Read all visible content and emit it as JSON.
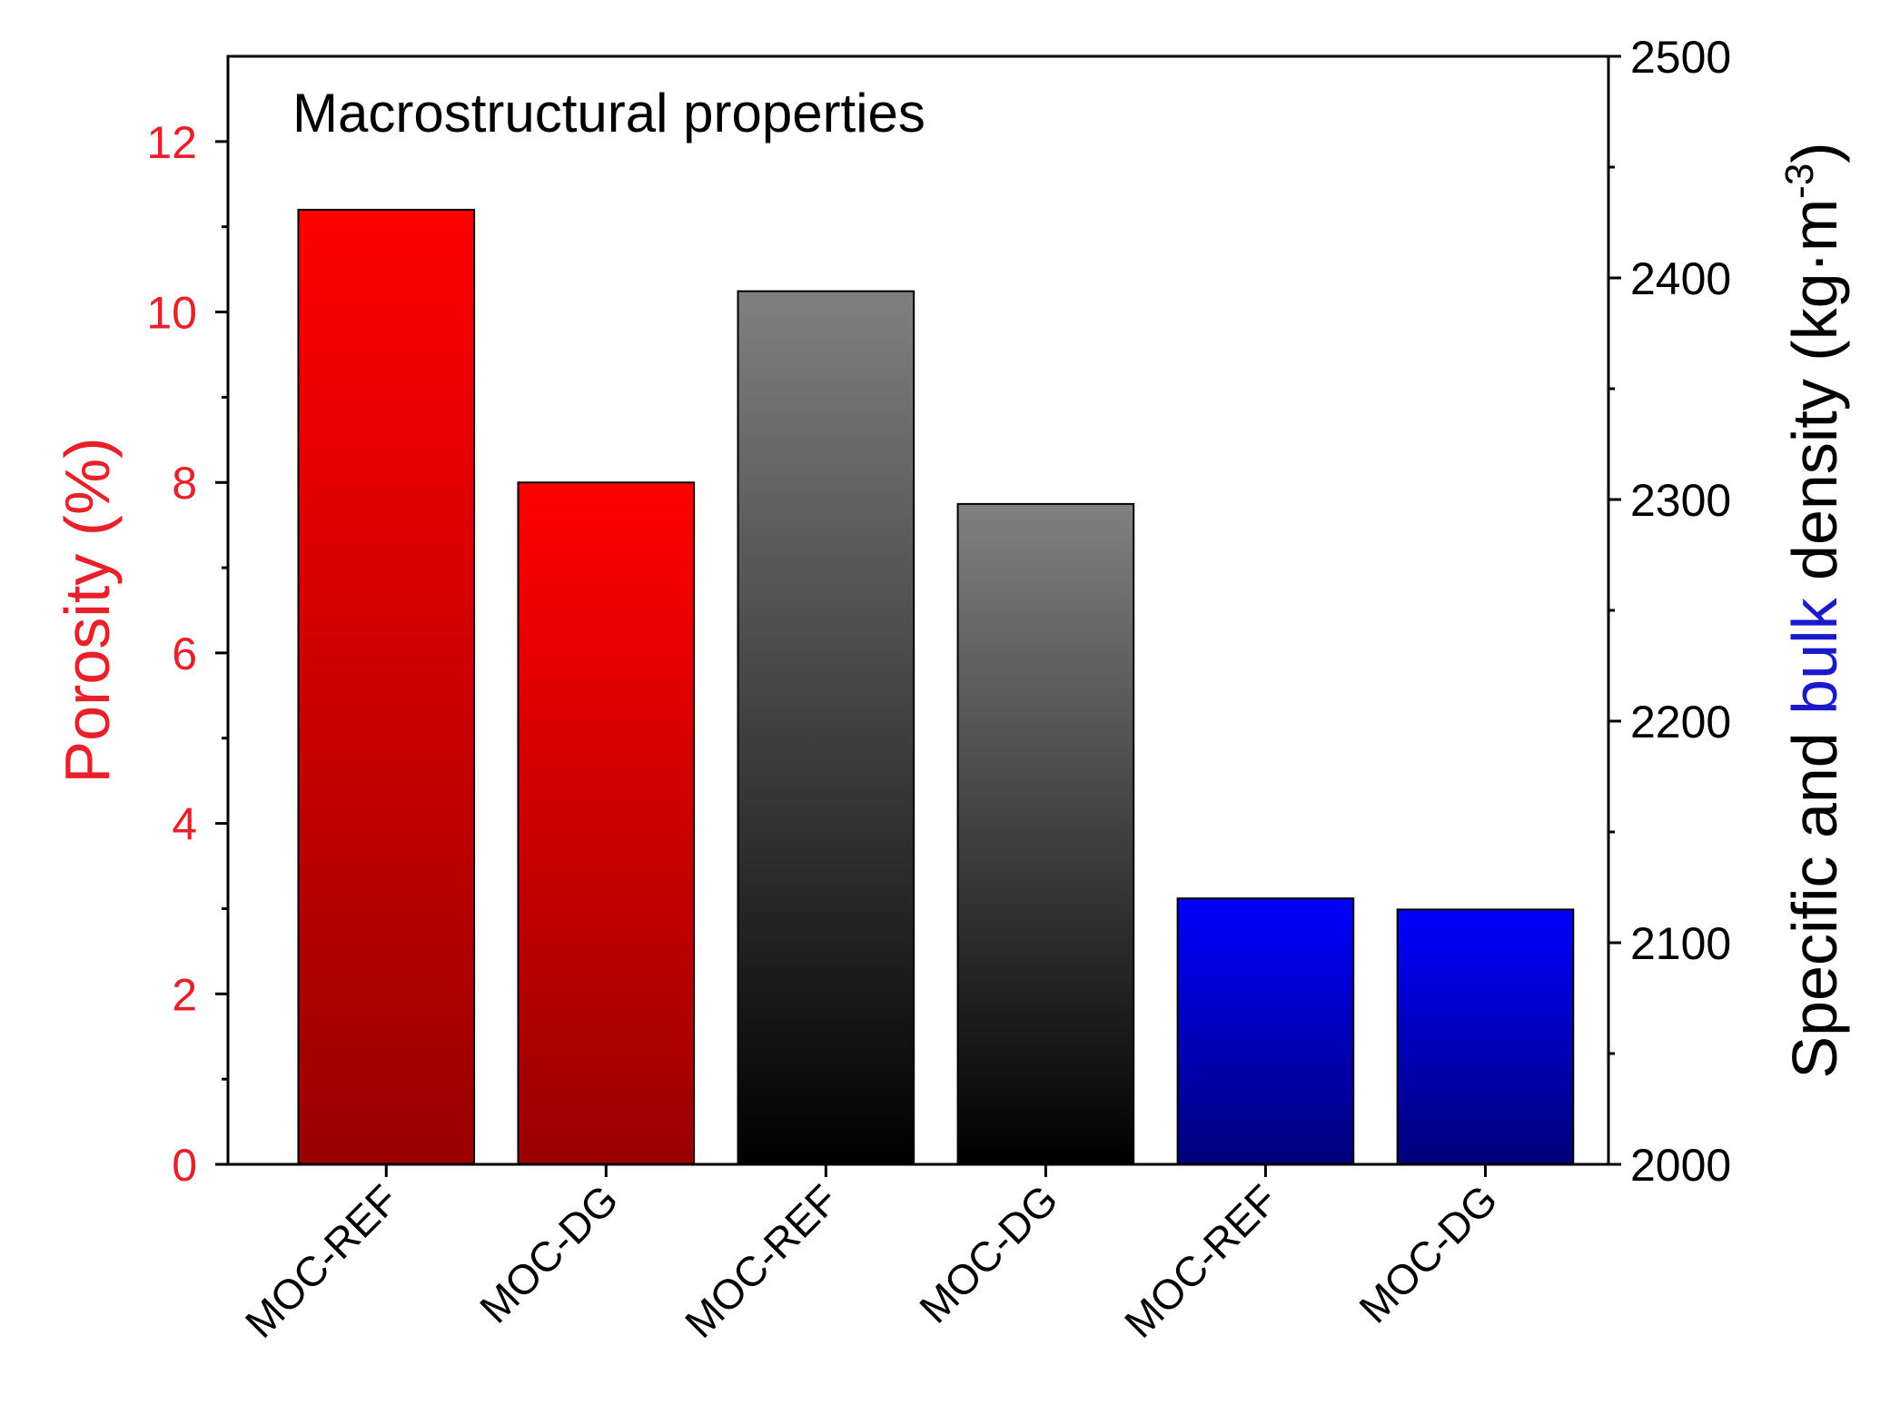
{
  "chart_data": {
    "type": "bar",
    "title": "Macrostructural properties",
    "categories": [
      "MOC-REF",
      "MOC-DG",
      "MOC-REF",
      "MOC-DG",
      "MOC-REF",
      "MOC-DG"
    ],
    "series": [
      {
        "axis": "left",
        "color": "#ff0000",
        "color_dark": "#990000",
        "points": [
          {
            "index": 0,
            "value": 11.2
          },
          {
            "index": 1,
            "value": 8.0
          }
        ]
      },
      {
        "axis": "right",
        "color": "#808080",
        "color_dark": "#000000",
        "points": [
          {
            "index": 2,
            "value": 2394
          },
          {
            "index": 3,
            "value": 2298
          }
        ]
      },
      {
        "axis": "right",
        "color": "#0000ff",
        "color_dark": "#00007a",
        "points": [
          {
            "index": 4,
            "value": 2120
          },
          {
            "index": 5,
            "value": 2115
          }
        ]
      }
    ],
    "y_left": {
      "label": "Porosity (%)",
      "color": "#e8202a",
      "ylim": [
        0,
        13
      ],
      "ticks": [
        0,
        2,
        4,
        6,
        8,
        10,
        12
      ]
    },
    "y_right": {
      "label_parts": [
        {
          "text": "Specific and ",
          "color": "#000000"
        },
        {
          "text": "bulk",
          "color": "#1a1acc"
        },
        {
          "text": " density (kg·m",
          "color": "#000000"
        },
        {
          "text": "-3",
          "color": "#000000",
          "superscript": true
        },
        {
          "text": ")",
          "color": "#000000"
        }
      ],
      "ylim": [
        2000,
        2500
      ],
      "ticks": [
        2000,
        2100,
        2200,
        2300,
        2400,
        2500
      ]
    },
    "grid": false,
    "legend": "none"
  }
}
